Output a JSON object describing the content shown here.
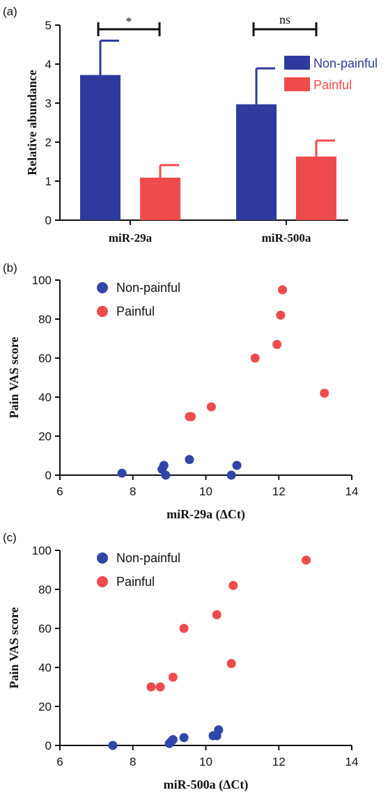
{
  "colors": {
    "non_painful": "#2e3a9e",
    "painful": "#ef4b4e",
    "non_painful_dot": "#2f45a8",
    "painful_dot": "#ef4b4e"
  },
  "chart_data": [
    {
      "panel": "(a)",
      "type": "bar",
      "categories": [
        "miR-29a",
        "miR-500a"
      ],
      "series": [
        {
          "name": "Non-painful",
          "values": [
            3.72,
            2.97
          ],
          "errors": [
            0.88,
            0.92
          ]
        },
        {
          "name": "Painful",
          "values": [
            1.09,
            1.63
          ],
          "errors": [
            0.32,
            0.41
          ]
        }
      ],
      "significance": [
        "*",
        "ns"
      ],
      "ylabel": "Relative abundance",
      "xlabel": "",
      "ylim": [
        0,
        5
      ],
      "yticks": [
        0,
        1,
        2,
        3,
        4,
        5
      ],
      "legend_position": "top-right"
    },
    {
      "panel": "(b)",
      "type": "scatter",
      "xlabel": "miR-29a (ΔCt)",
      "ylabel": "Pain VAS score",
      "xlim": [
        6,
        14
      ],
      "ylim": [
        0,
        100
      ],
      "xticks": [
        6,
        8,
        10,
        12,
        14
      ],
      "yticks": [
        0,
        20,
        40,
        60,
        80,
        100
      ],
      "legend_position": "top-left",
      "series": [
        {
          "name": "Non-painful",
          "x": [
            7.7,
            8.8,
            8.85,
            8.9,
            9.55,
            10.7,
            10.85
          ],
          "y": [
            1,
            3,
            5,
            0,
            8,
            0,
            5
          ]
        },
        {
          "name": "Painful",
          "x": [
            9.55,
            9.6,
            10.15,
            11.35,
            11.95,
            12.05,
            12.1,
            13.25
          ],
          "y": [
            30,
            30,
            35,
            60,
            67,
            82,
            95,
            42
          ]
        }
      ]
    },
    {
      "panel": "(c)",
      "type": "scatter",
      "xlabel": "miR-500a (ΔCt)",
      "ylabel": "Pain VAS score",
      "xlim": [
        6,
        14
      ],
      "ylim": [
        0,
        100
      ],
      "xticks": [
        6,
        8,
        10,
        12,
        14
      ],
      "yticks": [
        0,
        20,
        40,
        60,
        80,
        100
      ],
      "legend_position": "top-left",
      "series": [
        {
          "name": "Non-painful",
          "x": [
            7.45,
            9.0,
            9.05,
            9.1,
            9.4,
            10.2,
            10.3,
            10.35
          ],
          "y": [
            0,
            1,
            2,
            3,
            4,
            5,
            5,
            8
          ]
        },
        {
          "name": "Painful",
          "x": [
            8.5,
            8.75,
            9.1,
            9.4,
            10.3,
            10.7,
            10.75,
            12.75
          ],
          "y": [
            30,
            30,
            35,
            60,
            67,
            42,
            82,
            95
          ]
        }
      ]
    }
  ]
}
